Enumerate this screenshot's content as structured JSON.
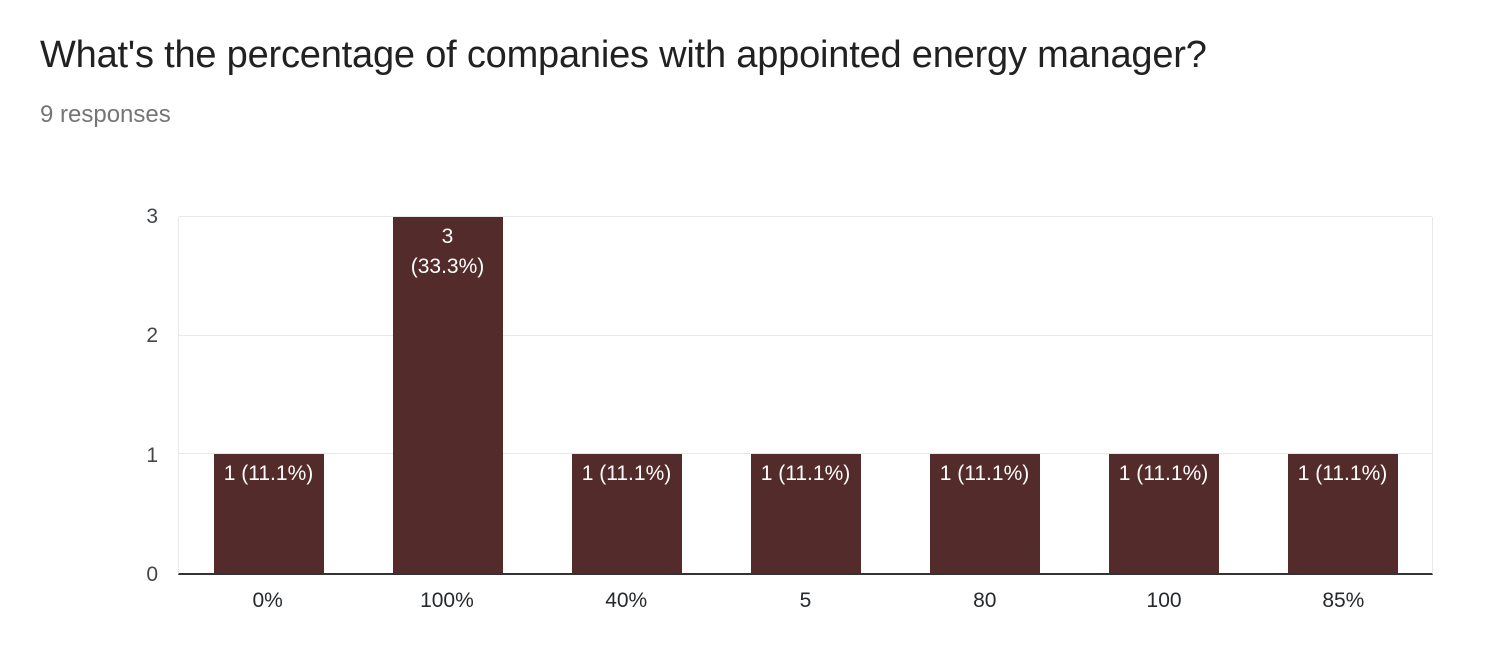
{
  "header": {
    "title": "What's the percentage of companies with appointed energy manager?",
    "subtitle": "9 responses"
  },
  "chart_data": {
    "type": "bar",
    "title": "What's the percentage of companies with appointed energy manager?",
    "subtitle": "9 responses",
    "total_responses": 9,
    "categories": [
      "0%",
      "100%",
      "40%",
      "5",
      "80",
      "100",
      "85%"
    ],
    "values": [
      1,
      3,
      1,
      1,
      1,
      1,
      1
    ],
    "bar_labels": [
      "1 (11.1%)",
      "3\n(33.3%)",
      "1 (11.1%)",
      "1 (11.1%)",
      "1 (11.1%)",
      "1 (11.1%)",
      "1 (11.1%)"
    ],
    "xlabel": "",
    "ylabel": "",
    "yticks": [
      0,
      1,
      2,
      3
    ],
    "ylim": [
      0,
      3
    ],
    "grid": true,
    "legend": "none",
    "colors": {
      "bar": "#532b2b",
      "bar_label": "#ffffff",
      "gridline": "#e8e8e8",
      "baseline": "#333333",
      "y_tick_label": "#44474a",
      "x_tick_label": "#26292c",
      "title": "#212121",
      "subtitle": "#757575",
      "background": "#ffffff"
    }
  }
}
